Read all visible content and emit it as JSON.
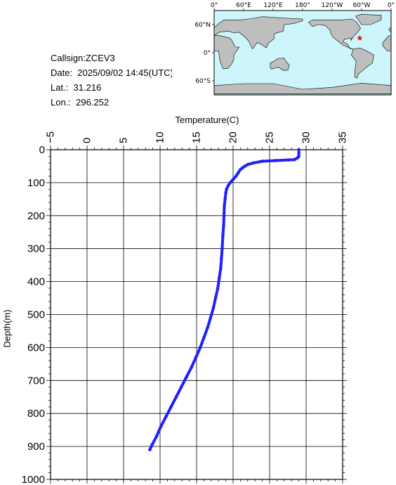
{
  "info": {
    "callsign": "Callsign:ZCEV3",
    "date": "Date:  2025/09/02 14:45(UTC)",
    "lat": "Lat.:  31.216",
    "lon": "Lon.:  296.252"
  },
  "map": {
    "lon_labels": [
      "0°",
      "60°E",
      "120°E",
      "180°",
      "120°W",
      "60°W",
      "0°"
    ],
    "lat_labels": [
      "60°N",
      "0°",
      "60°S"
    ],
    "station": {
      "lat": 31.216,
      "lon": 296.252
    },
    "colors": {
      "ocean": "#ccf6fb",
      "land": "#bebebe",
      "marker": "#ff0000"
    }
  },
  "chart_data": {
    "type": "line",
    "title": "",
    "xlabel": "Temperature(C)",
    "ylabel": "Depth(m)",
    "xlim": [
      -5,
      35
    ],
    "ylim": [
      1000,
      0
    ],
    "x_ticks": [
      -5,
      0,
      5,
      10,
      15,
      20,
      25,
      30,
      35
    ],
    "y_ticks": [
      0,
      100,
      200,
      300,
      400,
      500,
      600,
      700,
      800,
      900,
      1000
    ],
    "grid": true,
    "line_color": "#2020ff",
    "series": [
      {
        "points": [
          [
            29.0,
            0
          ],
          [
            29.0,
            10
          ],
          [
            29.0,
            20
          ],
          [
            28.8,
            25
          ],
          [
            28.4,
            30
          ],
          [
            27.6,
            31
          ],
          [
            25.8,
            33
          ],
          [
            24.0,
            35
          ],
          [
            22.8,
            40
          ],
          [
            22.0,
            45
          ],
          [
            21.6,
            50
          ],
          [
            21.3,
            55
          ],
          [
            21.0,
            60
          ],
          [
            20.7,
            70
          ],
          [
            20.4,
            80
          ],
          [
            20.0,
            90
          ],
          [
            19.6,
            100
          ],
          [
            19.3,
            110
          ],
          [
            19.1,
            120
          ],
          [
            19.0,
            130
          ],
          [
            18.9,
            150
          ],
          [
            18.8,
            170
          ],
          [
            18.75,
            200
          ],
          [
            18.7,
            230
          ],
          [
            18.6,
            260
          ],
          [
            18.5,
            300
          ],
          [
            18.4,
            330
          ],
          [
            18.3,
            360
          ],
          [
            18.1,
            390
          ],
          [
            17.9,
            420
          ],
          [
            17.6,
            450
          ],
          [
            17.3,
            480
          ],
          [
            16.9,
            510
          ],
          [
            16.5,
            540
          ],
          [
            16.0,
            570
          ],
          [
            15.5,
            600
          ],
          [
            14.9,
            630
          ],
          [
            14.3,
            660
          ],
          [
            13.6,
            690
          ],
          [
            12.9,
            720
          ],
          [
            12.2,
            750
          ],
          [
            11.5,
            780
          ],
          [
            10.8,
            810
          ],
          [
            10.1,
            840
          ],
          [
            9.5,
            870
          ],
          [
            8.9,
            895
          ],
          [
            8.6,
            910
          ]
        ]
      }
    ]
  }
}
